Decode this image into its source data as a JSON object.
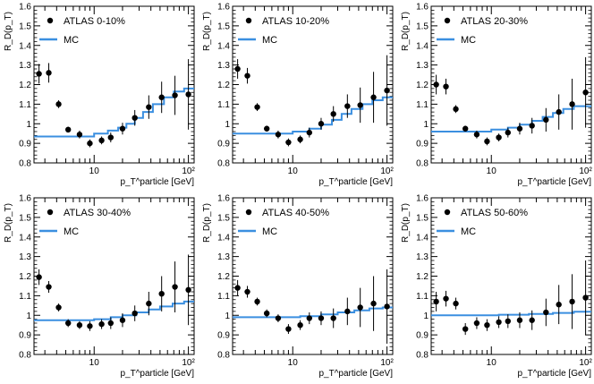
{
  "chart_data": [
    {
      "type": "scatter",
      "panel": "0-10%",
      "legend": [
        "ATLAS 0-10%",
        "MC"
      ],
      "ylabel": "R_D(p_T)",
      "xlabel": "p_T^particle [GeV]",
      "xscale": "log",
      "xlim": [
        2.3,
        115
      ],
      "ylim": [
        0.8,
        1.6
      ],
      "yticks": [
        "0.8",
        "0.9",
        "1",
        "1.1",
        "1.2",
        "1.3",
        "1.4",
        "1.5",
        "1.6"
      ],
      "xticks": [
        "10",
        "10²"
      ],
      "series": [
        {
          "name": "ATLAS 0-10%",
          "points": [
            {
              "x": 2.6,
              "y": 1.255,
              "err": 0.05
            },
            {
              "x": 3.3,
              "y": 1.26,
              "err": 0.05
            },
            {
              "x": 4.2,
              "y": 1.1,
              "err": 0.02
            },
            {
              "x": 5.3,
              "y": 0.97,
              "err": 0.015
            },
            {
              "x": 7.0,
              "y": 0.945,
              "err": 0.02
            },
            {
              "x": 9.0,
              "y": 0.9,
              "err": 0.02
            },
            {
              "x": 12.0,
              "y": 0.915,
              "err": 0.02
            },
            {
              "x": 15.0,
              "y": 0.93,
              "err": 0.025
            },
            {
              "x": 20.0,
              "y": 0.975,
              "err": 0.03
            },
            {
              "x": 27.0,
              "y": 1.03,
              "err": 0.04
            },
            {
              "x": 38.0,
              "y": 1.085,
              "err": 0.06
            },
            {
              "x": 52.0,
              "y": 1.135,
              "err": 0.08
            },
            {
              "x": 72.0,
              "y": 1.145,
              "err": 0.1
            },
            {
              "x": 100.0,
              "y": 1.15,
              "err": 0.18
            }
          ]
        },
        {
          "name": "MC",
          "color": "#3b8fe0",
          "steps": [
            {
              "x0": 2.3,
              "x1": 10,
              "y": 0.935
            },
            {
              "x0": 10,
              "x1": 14,
              "y": 0.95
            },
            {
              "x0": 14,
              "x1": 18,
              "y": 0.965
            },
            {
              "x0": 18,
              "x1": 22,
              "y": 0.98
            },
            {
              "x0": 22,
              "x1": 27,
              "y": 1.0
            },
            {
              "x0": 27,
              "x1": 33,
              "y": 1.03
            },
            {
              "x0": 33,
              "x1": 42,
              "y": 1.06
            },
            {
              "x0": 42,
              "x1": 55,
              "y": 1.1
            },
            {
              "x0": 55,
              "x1": 70,
              "y": 1.135
            },
            {
              "x0": 70,
              "x1": 90,
              "y": 1.165
            },
            {
              "x0": 90,
              "x1": 115,
              "y": 1.18
            }
          ]
        }
      ]
    },
    {
      "type": "scatter",
      "panel": "10-20%",
      "legend": [
        "ATLAS 10-20%",
        "MC"
      ],
      "ylabel": "R_D(p_T)",
      "xlabel": "p_T^particle [GeV]",
      "xscale": "log",
      "xlim": [
        2.3,
        115
      ],
      "ylim": [
        0.8,
        1.6
      ],
      "yticks": [
        "0.8",
        "0.9",
        "1",
        "1.1",
        "1.2",
        "1.3",
        "1.4",
        "1.5",
        "1.6"
      ],
      "xticks": [
        "10",
        "10²"
      ],
      "series": [
        {
          "name": "ATLAS 10-20%",
          "points": [
            {
              "x": 2.6,
              "y": 1.28,
              "err": 0.05
            },
            {
              "x": 3.3,
              "y": 1.245,
              "err": 0.04
            },
            {
              "x": 4.2,
              "y": 1.085,
              "err": 0.02
            },
            {
              "x": 5.3,
              "y": 0.975,
              "err": 0.015
            },
            {
              "x": 7.0,
              "y": 0.945,
              "err": 0.02
            },
            {
              "x": 9.0,
              "y": 0.905,
              "err": 0.02
            },
            {
              "x": 12.0,
              "y": 0.92,
              "err": 0.02
            },
            {
              "x": 15.0,
              "y": 0.955,
              "err": 0.025
            },
            {
              "x": 20.0,
              "y": 1.0,
              "err": 0.03
            },
            {
              "x": 27.0,
              "y": 1.05,
              "err": 0.04
            },
            {
              "x": 38.0,
              "y": 1.09,
              "err": 0.06
            },
            {
              "x": 52.0,
              "y": 1.095,
              "err": 0.09
            },
            {
              "x": 72.0,
              "y": 1.135,
              "err": 0.13
            },
            {
              "x": 100.0,
              "y": 1.17,
              "err": 0.18
            }
          ]
        },
        {
          "name": "MC",
          "color": "#3b8fe0",
          "steps": [
            {
              "x0": 2.3,
              "x1": 10,
              "y": 0.95
            },
            {
              "x0": 10,
              "x1": 15,
              "y": 0.96
            },
            {
              "x0": 15,
              "x1": 20,
              "y": 0.975
            },
            {
              "x0": 20,
              "x1": 26,
              "y": 0.995
            },
            {
              "x0": 26,
              "x1": 33,
              "y": 1.02
            },
            {
              "x0": 33,
              "x1": 42,
              "y": 1.05
            },
            {
              "x0": 42,
              "x1": 55,
              "y": 1.075
            },
            {
              "x0": 55,
              "x1": 70,
              "y": 1.1
            },
            {
              "x0": 70,
              "x1": 90,
              "y": 1.12
            },
            {
              "x0": 90,
              "x1": 115,
              "y": 1.135
            }
          ]
        }
      ]
    },
    {
      "type": "scatter",
      "panel": "20-30%",
      "legend": [
        "ATLAS 20-30%",
        "MC"
      ],
      "ylabel": "R_D(p_T)",
      "xlabel": "p_T^particle [GeV]",
      "xscale": "log",
      "xlim": [
        2.3,
        115
      ],
      "ylim": [
        0.8,
        1.6
      ],
      "yticks": [
        "0.8",
        "0.9",
        "1",
        "1.1",
        "1.2",
        "1.3",
        "1.4",
        "1.5",
        "1.6"
      ],
      "xticks": [
        "10",
        "10²"
      ],
      "series": [
        {
          "name": "ATLAS 20-30%",
          "points": [
            {
              "x": 2.6,
              "y": 1.2,
              "err": 0.05
            },
            {
              "x": 3.3,
              "y": 1.19,
              "err": 0.04
            },
            {
              "x": 4.2,
              "y": 1.075,
              "err": 0.02
            },
            {
              "x": 5.3,
              "y": 0.975,
              "err": 0.015
            },
            {
              "x": 7.0,
              "y": 0.945,
              "err": 0.02
            },
            {
              "x": 9.0,
              "y": 0.91,
              "err": 0.02
            },
            {
              "x": 12.0,
              "y": 0.93,
              "err": 0.02
            },
            {
              "x": 15.0,
              "y": 0.955,
              "err": 0.025
            },
            {
              "x": 20.0,
              "y": 0.975,
              "err": 0.03
            },
            {
              "x": 27.0,
              "y": 0.99,
              "err": 0.04
            },
            {
              "x": 38.0,
              "y": 1.02,
              "err": 0.06
            },
            {
              "x": 52.0,
              "y": 1.06,
              "err": 0.09
            },
            {
              "x": 72.0,
              "y": 1.1,
              "err": 0.13
            },
            {
              "x": 100.0,
              "y": 1.16,
              "err": 0.18
            }
          ]
        },
        {
          "name": "MC",
          "color": "#3b8fe0",
          "steps": [
            {
              "x0": 2.3,
              "x1": 10,
              "y": 0.96
            },
            {
              "x0": 10,
              "x1": 15,
              "y": 0.97
            },
            {
              "x0": 15,
              "x1": 20,
              "y": 0.98
            },
            {
              "x0": 20,
              "x1": 27,
              "y": 0.995
            },
            {
              "x0": 27,
              "x1": 35,
              "y": 1.015
            },
            {
              "x0": 35,
              "x1": 45,
              "y": 1.035
            },
            {
              "x0": 45,
              "x1": 58,
              "y": 1.055
            },
            {
              "x0": 58,
              "x1": 75,
              "y": 1.075
            },
            {
              "x0": 75,
              "x1": 115,
              "y": 1.09
            }
          ]
        }
      ]
    },
    {
      "type": "scatter",
      "panel": "30-40%",
      "legend": [
        "ATLAS 30-40%",
        "MC"
      ],
      "ylabel": "R_D(p_T)",
      "xlabel": "p_T^particle [GeV]",
      "xscale": "log",
      "xlim": [
        2.3,
        115
      ],
      "ylim": [
        0.8,
        1.6
      ],
      "yticks": [
        "0.8",
        "0.9",
        "1",
        "1.1",
        "1.2",
        "1.3",
        "1.4",
        "1.5",
        "1.6"
      ],
      "xticks": [
        "10",
        "10²"
      ],
      "series": [
        {
          "name": "ATLAS 30-40%",
          "points": [
            {
              "x": 2.6,
              "y": 1.195,
              "err": 0.04
            },
            {
              "x": 3.3,
              "y": 1.145,
              "err": 0.03
            },
            {
              "x": 4.2,
              "y": 1.04,
              "err": 0.02
            },
            {
              "x": 5.3,
              "y": 0.96,
              "err": 0.02
            },
            {
              "x": 7.0,
              "y": 0.95,
              "err": 0.02
            },
            {
              "x": 9.0,
              "y": 0.945,
              "err": 0.025
            },
            {
              "x": 12.0,
              "y": 0.955,
              "err": 0.025
            },
            {
              "x": 15.0,
              "y": 0.96,
              "err": 0.03
            },
            {
              "x": 20.0,
              "y": 0.975,
              "err": 0.035
            },
            {
              "x": 27.0,
              "y": 1.01,
              "err": 0.04
            },
            {
              "x": 38.0,
              "y": 1.06,
              "err": 0.06
            },
            {
              "x": 52.0,
              "y": 1.11,
              "err": 0.09
            },
            {
              "x": 72.0,
              "y": 1.145,
              "err": 0.13
            },
            {
              "x": 100.0,
              "y": 1.13,
              "err": 0.18
            }
          ]
        },
        {
          "name": "MC",
          "color": "#3b8fe0",
          "steps": [
            {
              "x0": 2.3,
              "x1": 10,
              "y": 0.975
            },
            {
              "x0": 10,
              "x1": 15,
              "y": 0.98
            },
            {
              "x0": 15,
              "x1": 20,
              "y": 0.99
            },
            {
              "x0": 20,
              "x1": 28,
              "y": 1.0
            },
            {
              "x0": 28,
              "x1": 38,
              "y": 1.015
            },
            {
              "x0": 38,
              "x1": 50,
              "y": 1.03
            },
            {
              "x0": 50,
              "x1": 68,
              "y": 1.045
            },
            {
              "x0": 68,
              "x1": 90,
              "y": 1.06
            },
            {
              "x0": 90,
              "x1": 115,
              "y": 1.07
            }
          ]
        }
      ]
    },
    {
      "type": "scatter",
      "panel": "40-50%",
      "legend": [
        "ATLAS 40-50%",
        "MC"
      ],
      "ylabel": "R_D(p_T)",
      "xlabel": "p_T^particle [GeV]",
      "xscale": "log",
      "xlim": [
        2.3,
        115
      ],
      "ylim": [
        0.8,
        1.6
      ],
      "yticks": [
        "0.8",
        "0.9",
        "1",
        "1.1",
        "1.2",
        "1.3",
        "1.4",
        "1.5",
        "1.6"
      ],
      "xticks": [
        "10",
        "10²"
      ],
      "series": [
        {
          "name": "ATLAS 40-50%",
          "points": [
            {
              "x": 2.6,
              "y": 1.14,
              "err": 0.04
            },
            {
              "x": 3.3,
              "y": 1.12,
              "err": 0.03
            },
            {
              "x": 4.2,
              "y": 1.07,
              "err": 0.02
            },
            {
              "x": 5.3,
              "y": 1.01,
              "err": 0.02
            },
            {
              "x": 7.0,
              "y": 0.985,
              "err": 0.02
            },
            {
              "x": 9.0,
              "y": 0.93,
              "err": 0.025
            },
            {
              "x": 12.0,
              "y": 0.95,
              "err": 0.025
            },
            {
              "x": 15.0,
              "y": 0.985,
              "err": 0.03
            },
            {
              "x": 20.0,
              "y": 0.985,
              "err": 0.035
            },
            {
              "x": 27.0,
              "y": 0.985,
              "err": 0.05
            },
            {
              "x": 38.0,
              "y": 1.02,
              "err": 0.07
            },
            {
              "x": 52.0,
              "y": 1.04,
              "err": 0.1
            },
            {
              "x": 72.0,
              "y": 1.06,
              "err": 0.14
            },
            {
              "x": 100.0,
              "y": 1.045,
              "err": 0.19
            }
          ]
        },
        {
          "name": "MC",
          "color": "#3b8fe0",
          "steps": [
            {
              "x0": 2.3,
              "x1": 12,
              "y": 0.99
            },
            {
              "x0": 12,
              "x1": 20,
              "y": 0.995
            },
            {
              "x0": 20,
              "x1": 30,
              "y": 1.005
            },
            {
              "x0": 30,
              "x1": 45,
              "y": 1.015
            },
            {
              "x0": 45,
              "x1": 65,
              "y": 1.025
            },
            {
              "x0": 65,
              "x1": 90,
              "y": 1.035
            },
            {
              "x0": 90,
              "x1": 115,
              "y": 1.04
            }
          ]
        }
      ]
    },
    {
      "type": "scatter",
      "panel": "50-60%",
      "legend": [
        "ATLAS 50-60%",
        "MC"
      ],
      "ylabel": "R_D(p_T)",
      "xlabel": "p_T^particle [GeV]",
      "xscale": "log",
      "xlim": [
        2.3,
        115
      ],
      "ylim": [
        0.8,
        1.6
      ],
      "yticks": [
        "0.8",
        "0.9",
        "1",
        "1.1",
        "1.2",
        "1.3",
        "1.4",
        "1.5",
        "1.6"
      ],
      "xticks": [
        "10",
        "10²"
      ],
      "series": [
        {
          "name": "ATLAS 50-60%",
          "points": [
            {
              "x": 2.6,
              "y": 1.07,
              "err": 0.05
            },
            {
              "x": 3.3,
              "y": 1.085,
              "err": 0.04
            },
            {
              "x": 4.2,
              "y": 1.06,
              "err": 0.03
            },
            {
              "x": 5.3,
              "y": 0.93,
              "err": 0.03
            },
            {
              "x": 7.0,
              "y": 0.96,
              "err": 0.03
            },
            {
              "x": 9.0,
              "y": 0.95,
              "err": 0.03
            },
            {
              "x": 12.0,
              "y": 0.965,
              "err": 0.03
            },
            {
              "x": 15.0,
              "y": 0.97,
              "err": 0.035
            },
            {
              "x": 20.0,
              "y": 0.975,
              "err": 0.04
            },
            {
              "x": 27.0,
              "y": 0.975,
              "err": 0.05
            },
            {
              "x": 38.0,
              "y": 1.015,
              "err": 0.07
            },
            {
              "x": 52.0,
              "y": 1.055,
              "err": 0.1
            },
            {
              "x": 72.0,
              "y": 1.07,
              "err": 0.14
            },
            {
              "x": 100.0,
              "y": 1.09,
              "err": 0.19
            }
          ]
        },
        {
          "name": "MC",
          "color": "#3b8fe0",
          "steps": [
            {
              "x0": 2.3,
              "x1": 12,
              "y": 1.0
            },
            {
              "x0": 12,
              "x1": 25,
              "y": 1.003
            },
            {
              "x0": 25,
              "x1": 45,
              "y": 1.007
            },
            {
              "x0": 45,
              "x1": 75,
              "y": 1.012
            },
            {
              "x0": 75,
              "x1": 115,
              "y": 1.018
            }
          ]
        }
      ]
    }
  ]
}
